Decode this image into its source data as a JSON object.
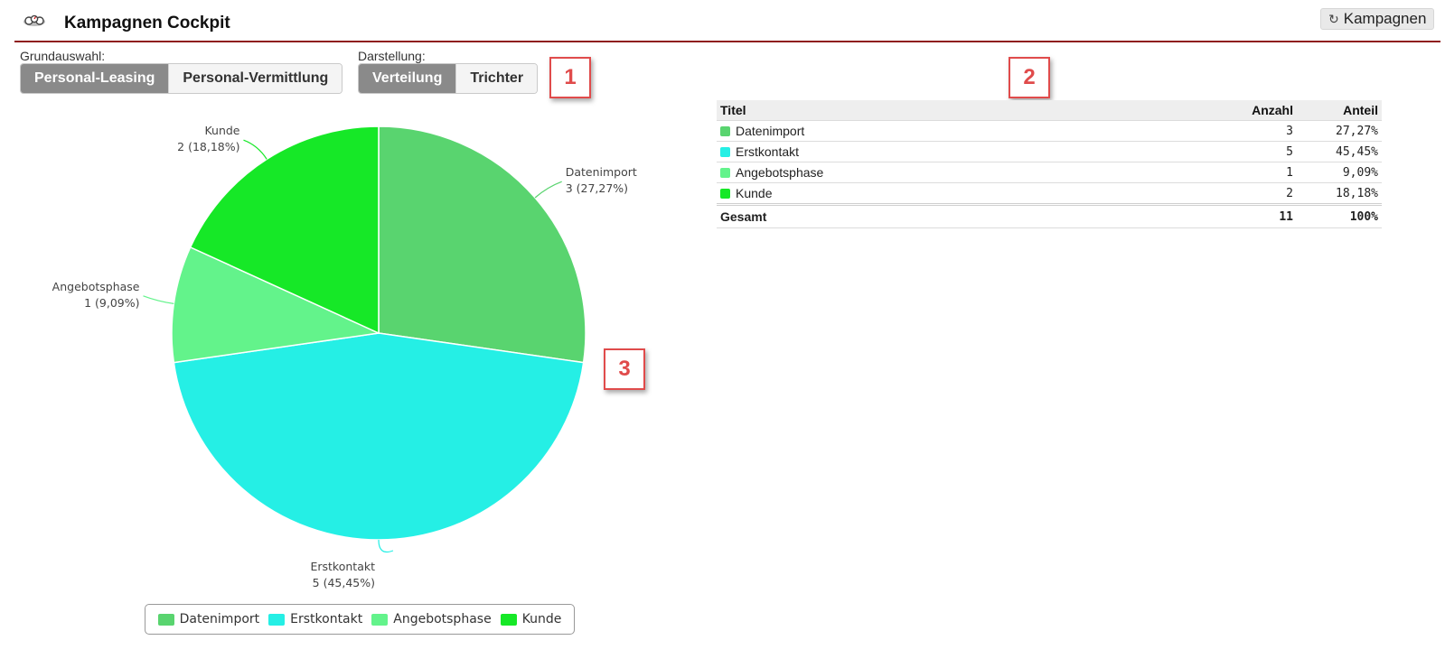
{
  "header": {
    "title": "Kampagnen Cockpit",
    "campaigns_button": "Kampagnen",
    "logo": "speedometer-icon",
    "refresh_icon": "refresh-icon"
  },
  "selection": {
    "base_label": "Grundauswahl:",
    "base_options": [
      "Personal-Leasing",
      "Personal-Vermittlung"
    ],
    "base_active": "Personal-Leasing",
    "display_label": "Darstellung:",
    "display_options": [
      "Verteilung",
      "Trichter"
    ],
    "display_active": "Verteilung"
  },
  "markers": [
    "1",
    "2",
    "3"
  ],
  "table": {
    "headers": [
      "Titel",
      "Anzahl",
      "Anteil"
    ],
    "rows": [
      {
        "title": "Datenimport",
        "count": "3",
        "share": "27,27%"
      },
      {
        "title": "Erstkontakt",
        "count": "5",
        "share": "45,45%"
      },
      {
        "title": "Angebotsphase",
        "count": "1",
        "share": "9,09%"
      },
      {
        "title": "Kunde",
        "count": "2",
        "share": "18,18%"
      }
    ],
    "total": {
      "title": "Gesamt",
      "count": "11",
      "share": "100%"
    }
  },
  "colors": {
    "accent_rule": "#8f1e1e",
    "marker": "#e04b4b",
    "Datenimport": "#59d46f",
    "Erstkontakt": "#25efe5",
    "Angebotsphase": "#63f38b",
    "Kunde": "#16e827"
  },
  "chart_data": {
    "type": "pie",
    "categories": [
      "Datenimport",
      "Erstkontakt",
      "Angebotsphase",
      "Kunde"
    ],
    "values": [
      3,
      5,
      1,
      2
    ],
    "labels": [
      "3 (27,27%)",
      "5 (45,45%)",
      "1 (9,09%)",
      "2 (18,18%)"
    ],
    "colors": [
      "#59d46f",
      "#25efe5",
      "#63f38b",
      "#16e827"
    ],
    "legend": [
      "Datenimport",
      "Erstkontakt",
      "Angebotsphase",
      "Kunde"
    ],
    "legend_position": "bottom"
  }
}
